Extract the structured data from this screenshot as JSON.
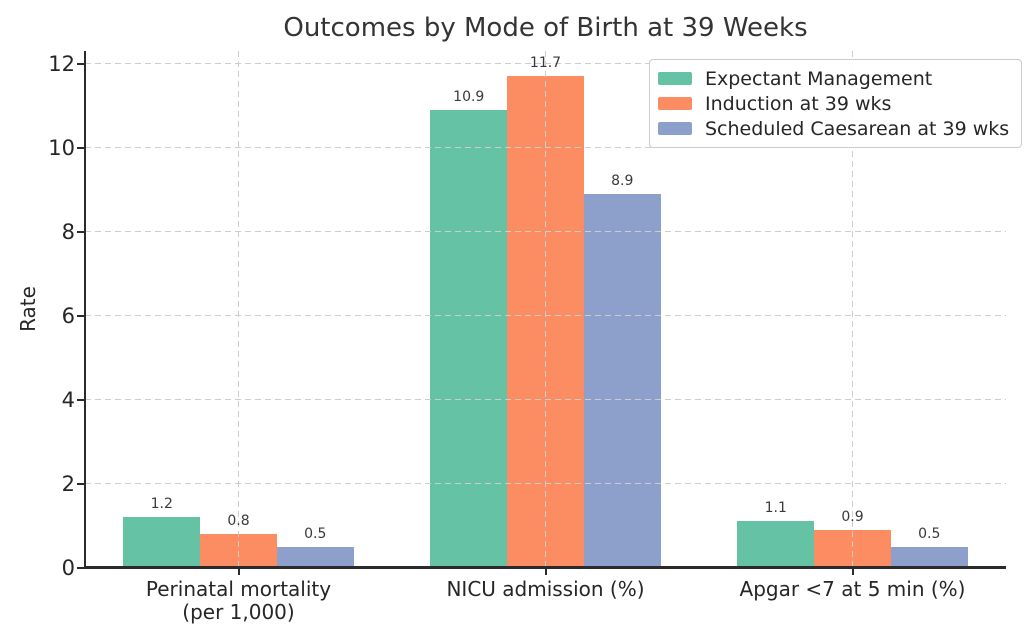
{
  "chart_data": {
    "type": "bar",
    "title": "Outcomes by Mode of Birth at 39 Weeks",
    "ylabel": "Rate",
    "xlabel": "",
    "categories": [
      "Perinatal mortality\n(per 1,000)",
      "NICU admission (%)",
      "Apgar <7 at 5 min (%)"
    ],
    "series": [
      {
        "name": "Expectant Management",
        "color": "#66c2a5",
        "values": [
          1.2,
          10.9,
          1.1
        ]
      },
      {
        "name": "Induction at 39 wks",
        "color": "#fc8d62",
        "values": [
          0.8,
          11.7,
          0.9
        ]
      },
      {
        "name": "Scheduled Caesarean at 39 wks",
        "color": "#8da0cb",
        "values": [
          0.5,
          8.9,
          0.5
        ]
      }
    ],
    "bar_value_labels_shown": true,
    "yticks": [
      "0",
      "2",
      "4",
      "6",
      "8",
      "10",
      "12"
    ],
    "ylim": [
      0,
      12.3
    ],
    "grid": true,
    "grid_style": "dashed",
    "grid_color": "#cccccc",
    "legend_position": "upper right",
    "text_color": "#262626"
  }
}
